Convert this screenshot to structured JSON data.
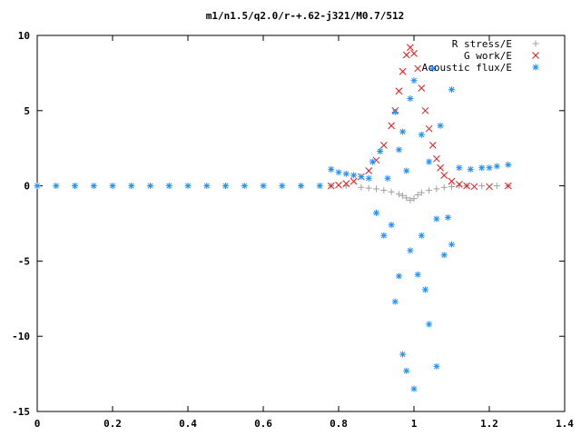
{
  "chart_data": {
    "type": "scatter",
    "title": "m1/n1.5/q2.0/r-+.62-j321/M0.7/512",
    "xlabel": "",
    "ylabel": "",
    "xlim": [
      0,
      1.4
    ],
    "ylim": [
      -15,
      10
    ],
    "x_ticks": [
      "0",
      "0.2",
      "0.4",
      "0.6",
      "0.8",
      "1",
      "1.2",
      "1.4"
    ],
    "y_ticks": [
      "10",
      "5",
      "0",
      "-5",
      "-10",
      "-15"
    ],
    "legend_position": "top-right",
    "grid": false,
    "series": [
      {
        "name": "R stress/E",
        "marker": "+",
        "color": "#a0a0a0",
        "x": [
          0.78,
          0.82,
          0.86,
          0.88,
          0.9,
          0.92,
          0.94,
          0.96,
          0.97,
          0.98,
          0.99,
          1.0,
          1.01,
          1.02,
          1.04,
          1.06,
          1.08,
          1.1,
          1.12,
          1.14,
          1.18,
          1.22,
          1.25
        ],
        "y": [
          0.0,
          0.0,
          -0.1,
          -0.15,
          -0.2,
          -0.3,
          -0.4,
          -0.55,
          -0.65,
          -0.8,
          -0.95,
          -0.85,
          -0.6,
          -0.45,
          -0.3,
          -0.2,
          -0.1,
          -0.05,
          0.0,
          0.0,
          0.0,
          0.0,
          0.0
        ]
      },
      {
        "name": "G work/E",
        "marker": "x",
        "color": "#e41a1c",
        "x": [
          0.78,
          0.8,
          0.82,
          0.84,
          0.86,
          0.88,
          0.9,
          0.92,
          0.94,
          0.95,
          0.96,
          0.97,
          0.98,
          0.99,
          1.0,
          1.01,
          1.02,
          1.03,
          1.04,
          1.05,
          1.06,
          1.07,
          1.08,
          1.1,
          1.12,
          1.14,
          1.16,
          1.2,
          1.25
        ],
        "y": [
          0.0,
          0.05,
          0.15,
          0.3,
          0.6,
          1.0,
          1.7,
          2.7,
          4.0,
          5.0,
          6.3,
          7.6,
          8.7,
          9.2,
          8.8,
          7.8,
          6.5,
          5.0,
          3.8,
          2.7,
          1.8,
          1.2,
          0.7,
          0.3,
          0.1,
          0.0,
          -0.05,
          -0.05,
          0.0
        ]
      },
      {
        "name": "Acoustic flux/E",
        "marker": "*",
        "color": "#1e90ff",
        "x": [
          0.0,
          0.05,
          0.1,
          0.15,
          0.2,
          0.25,
          0.3,
          0.35,
          0.4,
          0.45,
          0.5,
          0.55,
          0.6,
          0.65,
          0.7,
          0.75,
          0.78,
          0.8,
          0.82,
          0.84,
          0.86,
          0.88,
          0.89,
          0.9,
          0.91,
          0.92,
          0.93,
          0.94,
          0.95,
          0.95,
          0.96,
          0.96,
          0.97,
          0.97,
          0.98,
          0.98,
          0.99,
          0.99,
          1.0,
          1.0,
          1.01,
          1.02,
          1.02,
          1.03,
          1.04,
          1.04,
          1.05,
          1.06,
          1.06,
          1.07,
          1.08,
          1.09,
          1.1,
          1.1,
          1.12,
          1.15,
          1.18,
          1.2,
          1.22,
          1.25
        ],
        "y": [
          0.0,
          0.0,
          0.0,
          0.0,
          0.0,
          0.0,
          0.0,
          0.0,
          0.0,
          0.0,
          0.0,
          0.0,
          0.0,
          0.0,
          0.0,
          0.0,
          1.1,
          0.9,
          0.8,
          0.7,
          0.6,
          0.5,
          1.6,
          -1.8,
          2.3,
          -3.3,
          0.5,
          -2.6,
          4.9,
          -7.7,
          2.4,
          -6.0,
          3.6,
          -11.2,
          1.0,
          -12.3,
          5.8,
          -4.3,
          7.0,
          -13.5,
          -5.9,
          3.4,
          -3.3,
          -6.9,
          1.6,
          -9.2,
          7.8,
          -2.2,
          -12.0,
          4.0,
          -4.6,
          -2.1,
          6.4,
          -3.9,
          1.2,
          1.1,
          1.2,
          1.2,
          1.3,
          1.4
        ]
      }
    ]
  }
}
